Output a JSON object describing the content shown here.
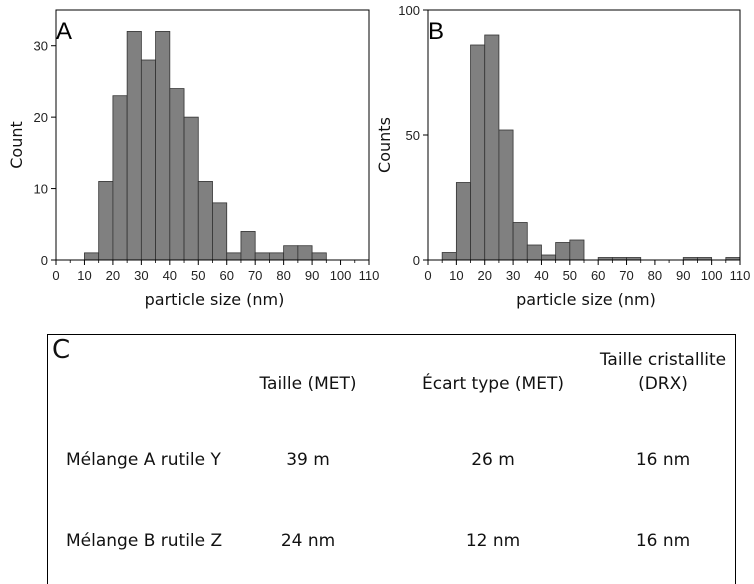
{
  "chart_data": [
    {
      "type": "bar",
      "panel": "A",
      "xlabel": "particle size (nm)",
      "ylabel": "Count",
      "xlim": [
        0,
        110
      ],
      "ylim": [
        0,
        35
      ],
      "xticks": [
        "0",
        "10",
        "20",
        "30",
        "40",
        "50",
        "60",
        "70",
        "80",
        "90",
        "100",
        "110"
      ],
      "yticks": [
        "0",
        "10",
        "20",
        "30"
      ],
      "bin_centers": [
        12.5,
        17.5,
        22.5,
        27.5,
        32.5,
        37.5,
        42.5,
        47.5,
        52.5,
        57.5,
        62.5,
        67.5,
        72.5,
        77.5,
        82.5,
        87.5,
        92.5
      ],
      "values": [
        1,
        11,
        23,
        32,
        28,
        32,
        24,
        20,
        11,
        8,
        1,
        4,
        1,
        1,
        2,
        2,
        1
      ]
    },
    {
      "type": "bar",
      "panel": "B",
      "xlabel": "particle size (nm)",
      "ylabel": "Counts",
      "xlim": [
        0,
        110
      ],
      "ylim": [
        0,
        100
      ],
      "xticks": [
        "0",
        "10",
        "20",
        "30",
        "40",
        "50",
        "60",
        "70",
        "80",
        "90",
        "100",
        "110"
      ],
      "yticks": [
        "0",
        "50",
        "100"
      ],
      "bin_centers": [
        7.5,
        12.5,
        17.5,
        22.5,
        27.5,
        32.5,
        37.5,
        42.5,
        47.5,
        52.5,
        62.5,
        67.5,
        72.5,
        92.5,
        97.5,
        107.5
      ],
      "values": [
        3,
        31,
        86,
        90,
        52,
        15,
        6,
        2,
        7,
        8,
        1,
        1,
        1,
        1,
        1,
        1
      ]
    }
  ],
  "table": {
    "panel_label": "C",
    "headers": [
      "Taille (MET)",
      "Écart type (MET)",
      "Taille cristallite",
      "(DRX)"
    ],
    "rows": [
      {
        "label": "Mélange A rutile Y",
        "taille": "39 m",
        "ecart": "26 m",
        "cristallite": "16 nm"
      },
      {
        "label": "Mélange B rutile Z",
        "taille": "24 nm",
        "ecart": "12 nm",
        "cristallite": "16 nm"
      }
    ]
  },
  "colors": {
    "bar_fill": "#808080",
    "bar_stroke": "#333333",
    "axis": "#000000"
  }
}
